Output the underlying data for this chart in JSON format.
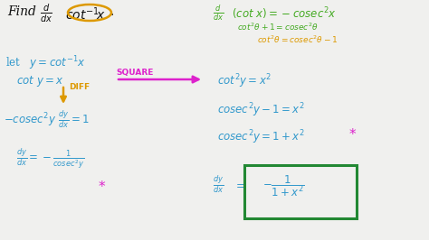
{
  "bg_color": "#f0f0ee",
  "dark_color": "#111111",
  "blue_color": "#3399cc",
  "green_color": "#44aa22",
  "orange_color": "#dd9900",
  "magenta_color": "#dd22cc",
  "box_color": "#228833",
  "figsize": [
    4.74,
    2.66
  ],
  "dpi": 100,
  "texts": {
    "find": "Find",
    "let": "let",
    "square": "SQUARE",
    "diff": "DIFF"
  }
}
